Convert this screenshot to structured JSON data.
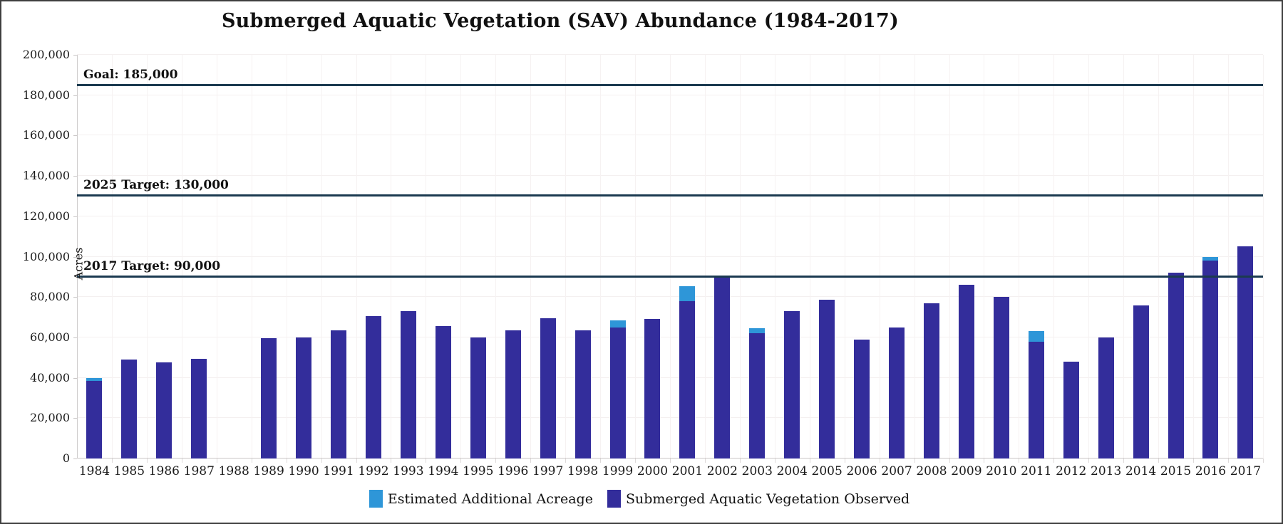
{
  "chart_data": {
    "type": "bar",
    "stacked": true,
    "title": "Submerged Aquatic Vegetation (SAV) Abundance (1984-2017)",
    "xlabel": "",
    "ylabel": "Acres",
    "y_axis": {
      "min": 0,
      "max": 200000,
      "tick_interval": 20000,
      "tick_labels": [
        "0",
        "20,000",
        "40,000",
        "60,000",
        "80,000",
        "100,000",
        "120,000",
        "140,000",
        "160,000",
        "180,000",
        "200,000"
      ]
    },
    "grid": "on",
    "legend_position": "bottom",
    "categories": [
      "1984",
      "1985",
      "1986",
      "1987",
      "1988",
      "1989",
      "1990",
      "1991",
      "1992",
      "1993",
      "1994",
      "1995",
      "1996",
      "1997",
      "1998",
      "1999",
      "2000",
      "2001",
      "2002",
      "2003",
      "2004",
      "2005",
      "2006",
      "2007",
      "2008",
      "2009",
      "2010",
      "2011",
      "2012",
      "2013",
      "2014",
      "2015",
      "2016",
      "2017"
    ],
    "series": [
      {
        "name": "Submerged Aquatic Vegetation Observed",
        "color": "#332D9B",
        "values": [
          38500,
          49000,
          47500,
          49500,
          null,
          59500,
          60000,
          63500,
          70500,
          73000,
          65500,
          60000,
          63500,
          69500,
          63500,
          65000,
          69000,
          78000,
          90500,
          62000,
          73000,
          78500,
          59000,
          65000,
          77000,
          86000,
          80000,
          58000,
          48000,
          60000,
          76000,
          92000,
          98000,
          105000
        ]
      },
      {
        "name": "Estimated Additional Acreage",
        "color": "#2E96D8",
        "values": [
          1500,
          0,
          0,
          0,
          null,
          0,
          0,
          0,
          0,
          0,
          0,
          0,
          0,
          0,
          0,
          3500,
          0,
          7500,
          0,
          2500,
          0,
          0,
          0,
          0,
          0,
          0,
          0,
          5000,
          0,
          0,
          0,
          0,
          2000,
          0
        ]
      }
    ],
    "reference_lines": [
      {
        "label": "Goal: 185,000",
        "value": 185000,
        "color": "#1B3A50"
      },
      {
        "label": "2025 Target: 130,000",
        "value": 130000,
        "color": "#1B3A50"
      },
      {
        "label": "2017 Target: 90,000",
        "value": 90000,
        "color": "#1B3A50"
      }
    ],
    "legend": [
      {
        "label": "Estimated Additional Acreage",
        "color": "#2E96D8"
      },
      {
        "label": "Submerged Aquatic Vegetation Observed",
        "color": "#332D9B"
      }
    ]
  }
}
